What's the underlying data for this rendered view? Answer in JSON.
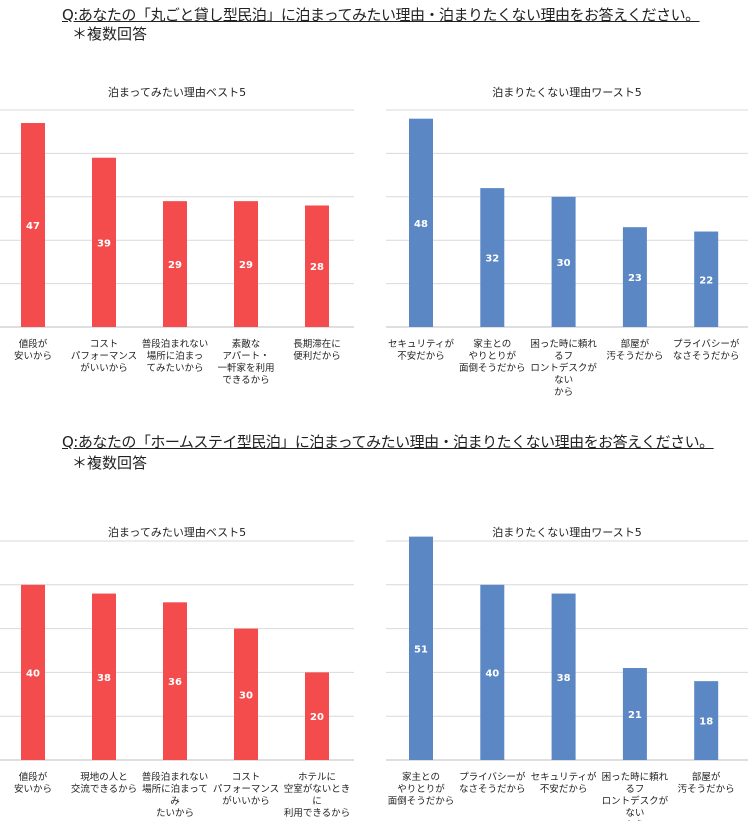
{
  "sections": [
    {
      "question": "Q:あなたの「丸ごと貸し型民泊」に泊まってみたい理由・泊まりたくない理由をお答えください。",
      "note": "＊複数回答"
    },
    {
      "question": "Q:あなたの「ホームステイ型民泊」に泊まってみたい理由・泊まりたくない理由をお答えください。",
      "note": "＊複数回答"
    }
  ],
  "chart_data": [
    {
      "type": "bar",
      "title": "泊まってみたい理由ベスト5",
      "color": "#f44c4c",
      "ylim": [
        0,
        50
      ],
      "grid": true,
      "categories": [
        "値段が\n安いから",
        "コスト\nパフォーマンス\nがいいから",
        "普段泊まれない\n場所に泊まっ\nてみたいから",
        "素敵な\nアパート・\n一軒家を利用\nできるから",
        "長期滞在に\n便利だから"
      ],
      "values": [
        47,
        39,
        29,
        29,
        28
      ]
    },
    {
      "type": "bar",
      "title": "泊まりたくない理由ワースト5",
      "color": "#5b87c5",
      "ylim": [
        0,
        50
      ],
      "grid": true,
      "categories": [
        "セキュリティが\n不安だから",
        "家主との\nやりとりが\n面倒そうだから",
        "困った時に頼れるフ\nロントデスクがない\nから",
        "部屋が\n汚そうだから",
        "プライバシーが\nなさそうだから"
      ],
      "values": [
        48,
        32,
        30,
        23,
        22
      ]
    },
    {
      "type": "bar",
      "title": "泊まってみたい理由ベスト5",
      "color": "#f44c4c",
      "ylim": [
        0,
        50
      ],
      "grid": true,
      "categories": [
        "値段が\n安いから",
        "現地の人と\n交流できるから",
        "普段泊まれない\n場所に泊まってみ\nたいから",
        "コスト\nパフォーマンス\nがいいから",
        "ホテルに\n空室がないときに\n利用できるから"
      ],
      "values": [
        40,
        38,
        36,
        30,
        20
      ]
    },
    {
      "type": "bar",
      "title": "泊まりたくない理由ワースト5",
      "color": "#5b87c5",
      "ylim": [
        0,
        50
      ],
      "grid": true,
      "categories": [
        "家主との\nやりとりが\n面倒そうだから",
        "プライバシーが\nなさそうだから",
        "セキュリティが\n不安だから",
        "困った時に頼れるフ\nロントデスクがない\nから",
        "部屋が\n汚そうだから"
      ],
      "values": [
        51,
        40,
        38,
        21,
        18
      ]
    }
  ]
}
